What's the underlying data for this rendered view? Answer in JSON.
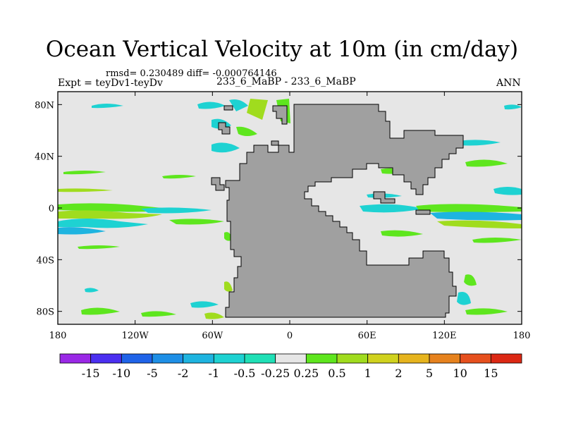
{
  "figure": {
    "title": "Ocean Vertical Velocity at 10m (in cm/day)",
    "stats_line": "rmsd= 0.230489 diff= -0.000764146",
    "left_label": "Expt = teyDv1-teyDv",
    "center_label": "233_6_MaBP - 233_6_MaBP",
    "right_label": "ANN"
  },
  "axes": {
    "lat_ticks": [
      {
        "label": "80N",
        "value": 80
      },
      {
        "label": "40N",
        "value": 40
      },
      {
        "label": "0",
        "value": 0
      },
      {
        "label": "40S",
        "value": -40
      },
      {
        "label": "80S",
        "value": -80
      }
    ],
    "lon_ticks": [
      {
        "label": "180",
        "value": -180
      },
      {
        "label": "120W",
        "value": -120
      },
      {
        "label": "60W",
        "value": -60
      },
      {
        "label": "0",
        "value": 0
      },
      {
        "label": "60E",
        "value": 60
      },
      {
        "label": "120E",
        "value": 120
      },
      {
        "label": "180",
        "value": 180
      }
    ],
    "lat_range": [
      -90,
      90
    ],
    "lon_range": [
      -180,
      180
    ]
  },
  "colorbar": {
    "labels": [
      "-15",
      "-10",
      "-5",
      "-2",
      "-1",
      "-0.5",
      "-0.25",
      "0.25",
      "0.5",
      "1",
      "2",
      "5",
      "10",
      "15"
    ],
    "colors": [
      "#9a28e6",
      "#4b2ff0",
      "#1f63e8",
      "#1e8fe6",
      "#1eb4e0",
      "#1ed2d2",
      "#20e0b6",
      "#e6e6e6",
      "#5ee61e",
      "#a0dc1e",
      "#d0d21e",
      "#e6b41e",
      "#e6821e",
      "#e6501e",
      "#dc2814"
    ]
  },
  "colors": {
    "background": "#e6e6e6",
    "land": "#a0a0a0",
    "cyan": "#1ed2d2",
    "lightblue": "#1eb4e0",
    "green": "#5ee61e",
    "yellowgreen": "#a0dc1e"
  }
}
